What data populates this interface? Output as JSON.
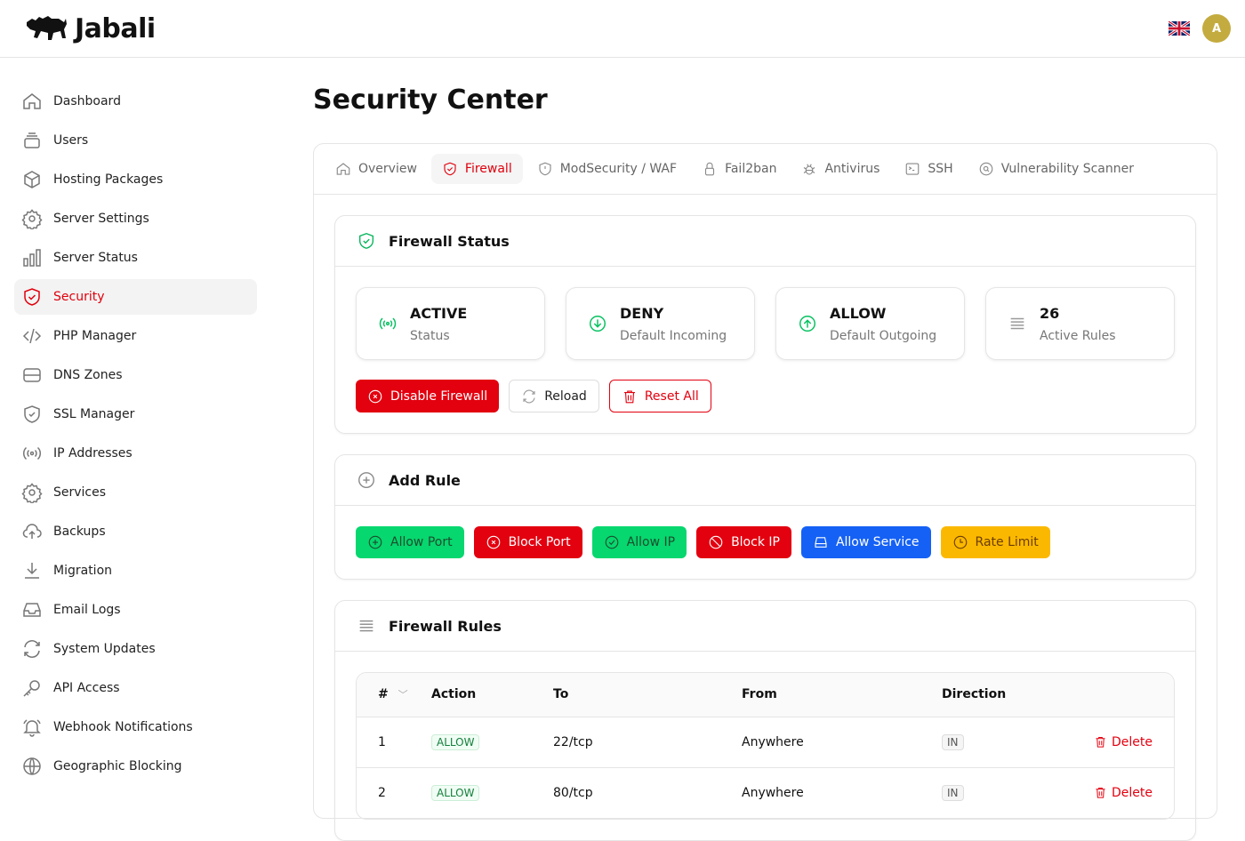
{
  "app": {
    "name": "Jabali",
    "avatar_initial": "A",
    "language_flag": "uk-flag-icon"
  },
  "sidebar": {
    "items": [
      {
        "label": "Dashboard",
        "icon": "home-icon"
      },
      {
        "label": "Users",
        "icon": "users-icon"
      },
      {
        "label": "Hosting Packages",
        "icon": "cube-icon"
      },
      {
        "label": "Server Settings",
        "icon": "gear-icon"
      },
      {
        "label": "Server Status",
        "icon": "chart-bar-icon"
      },
      {
        "label": "Security",
        "icon": "shield-check-icon",
        "active": true
      },
      {
        "label": "PHP Manager",
        "icon": "code-icon"
      },
      {
        "label": "DNS Zones",
        "icon": "server-icon"
      },
      {
        "label": "SSL Manager",
        "icon": "shield-icon"
      },
      {
        "label": "IP Addresses",
        "icon": "signal-icon"
      },
      {
        "label": "Services",
        "icon": "gear-icon"
      },
      {
        "label": "Backups",
        "icon": "cloud-upload-icon"
      },
      {
        "label": "Migration",
        "icon": "download-icon"
      },
      {
        "label": "Email Logs",
        "icon": "inbox-icon"
      },
      {
        "label": "System Updates",
        "icon": "refresh-icon"
      },
      {
        "label": "API Access",
        "icon": "key-icon"
      },
      {
        "label": "Webhook Notifications",
        "icon": "bell-icon"
      },
      {
        "label": "Geographic Blocking",
        "icon": "globe-icon"
      }
    ]
  },
  "page": {
    "title": "Security Center"
  },
  "tabs": [
    {
      "label": "Overview"
    },
    {
      "label": "Firewall",
      "active": true
    },
    {
      "label": "ModSecurity / WAF"
    },
    {
      "label": "Fail2ban"
    },
    {
      "label": "Antivirus"
    },
    {
      "label": "SSH"
    },
    {
      "label": "Vulnerability Scanner"
    }
  ],
  "firewall_status": {
    "title": "Firewall Status",
    "stats": [
      {
        "value": "ACTIVE",
        "label": "Status"
      },
      {
        "value": "DENY",
        "label": "Default Incoming"
      },
      {
        "value": "ALLOW",
        "label": "Default Outgoing"
      },
      {
        "value": "26",
        "label": "Active Rules"
      }
    ],
    "disable": "Disable Firewall",
    "reload": "Reload",
    "reset": "Reset All"
  },
  "add_rule": {
    "title": "Add Rule",
    "buttons": [
      "Allow Port",
      "Block Port",
      "Allow IP",
      "Block IP",
      "Allow Service",
      "Rate Limit"
    ]
  },
  "rules": {
    "title": "Firewall Rules",
    "columns": [
      "#",
      "Action",
      "To",
      "From",
      "Direction"
    ],
    "delete_label": "Delete",
    "rows": [
      {
        "num": "1",
        "action": "ALLOW",
        "to": "22/tcp",
        "from": "Anywhere",
        "direction": "IN"
      },
      {
        "num": "2",
        "action": "ALLOW",
        "to": "80/tcp",
        "from": "Anywhere",
        "direction": "IN"
      }
    ]
  },
  "colors": {
    "accent": "#e3000f",
    "success": "#06d76e",
    "info": "#1561f5",
    "warning": "#fbb800"
  }
}
